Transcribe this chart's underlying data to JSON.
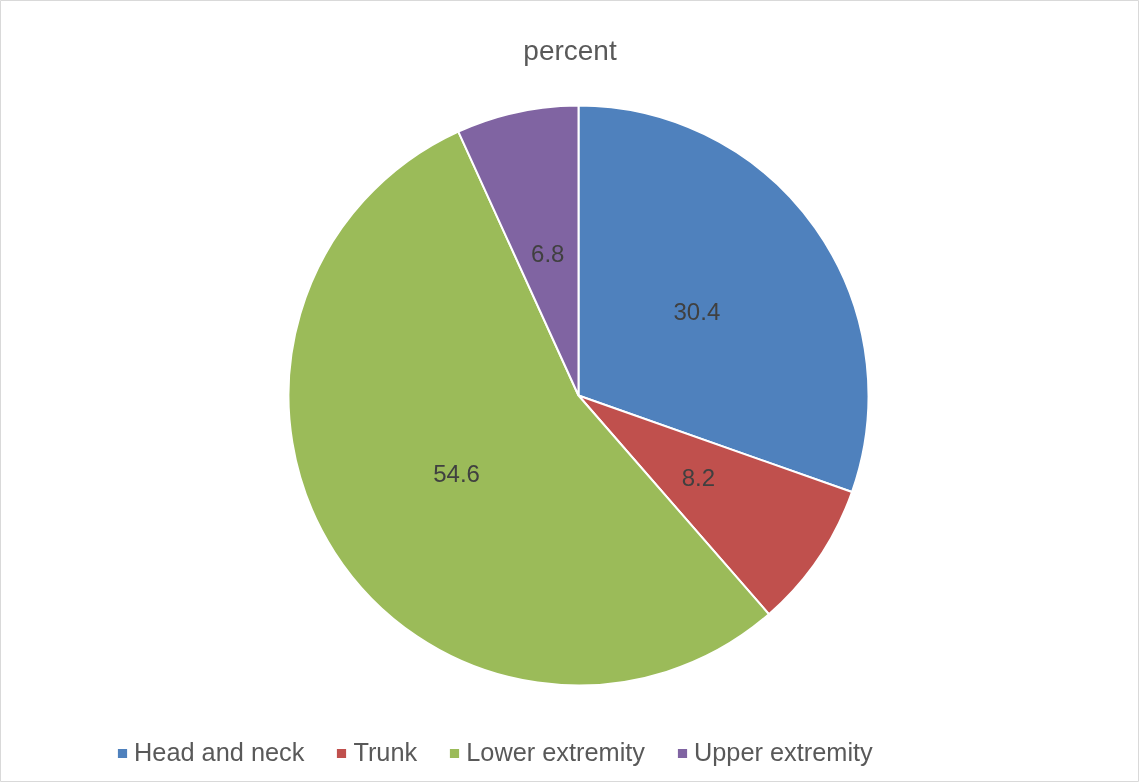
{
  "chart_data": {
    "type": "pie",
    "title": "percent",
    "categories": [
      "Head and neck",
      "Trunk",
      "Lower extremity",
      "Upper extremity"
    ],
    "values": [
      30.4,
      8.2,
      54.6,
      6.8
    ],
    "colors": [
      "#4f81bd",
      "#c0504d",
      "#9bbb59",
      "#8064a2"
    ],
    "data_labels": true,
    "legend": "bottom"
  }
}
